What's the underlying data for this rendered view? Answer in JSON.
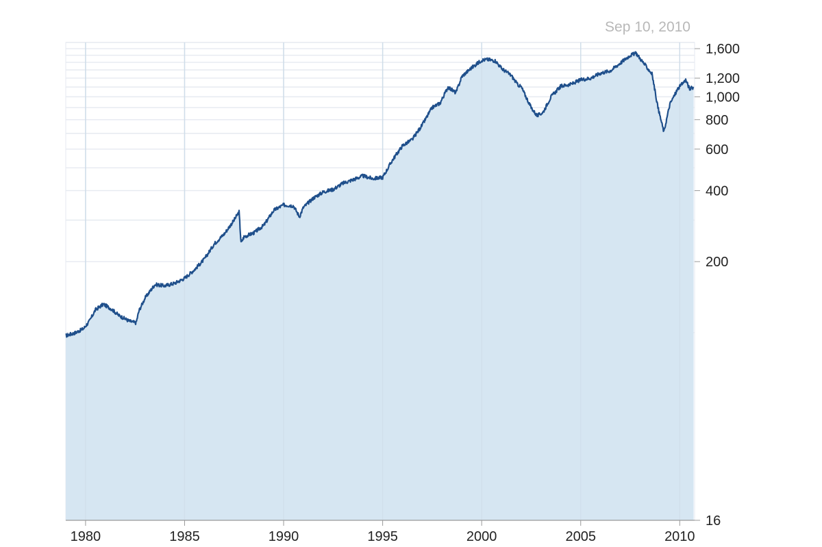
{
  "chart_data": {
    "type": "area",
    "date_label": "Sep 10, 2010",
    "title": "",
    "xlabel": "",
    "ylabel": "",
    "x_ticks": [
      "1980",
      "1985",
      "1990",
      "1995",
      "2000",
      "2005",
      "2010"
    ],
    "y_ticks": [
      "16",
      "200",
      "400",
      "600",
      "800",
      "1,000",
      "1,200",
      "1,600"
    ],
    "y_tick_values": [
      16,
      200,
      400,
      600,
      800,
      1000,
      1200,
      1600
    ],
    "y_grid_values": [
      100,
      200,
      300,
      400,
      500,
      600,
      700,
      800,
      900,
      1000,
      1100,
      1200,
      1300,
      1400,
      1500,
      1600,
      1700
    ],
    "y_scale": "log",
    "ylim": [
      16,
      1700
    ],
    "xlim": [
      "1979-01",
      "2010-09"
    ],
    "grid": true,
    "colors": {
      "line": "#1f4f8b",
      "fill": "#d6e6f2",
      "grid": "#e6eaf0",
      "year_grid": "#cfdde9"
    },
    "series": [
      {
        "x": [
          1979.0,
          1979.5,
          1979.9,
          1980.2,
          1980.5,
          1980.9,
          1981.3,
          1981.7,
          1982.2,
          1982.55,
          1982.7,
          1983.0,
          1983.5,
          1984.0,
          1984.5,
          1985.0,
          1985.5,
          1986.0,
          1986.5,
          1987.0,
          1987.5,
          1987.75,
          1987.85,
          1988.0,
          1988.5,
          1989.0,
          1989.5,
          1990.0,
          1990.5,
          1990.8,
          1991.0,
          1991.5,
          1992.0,
          1992.5,
          1993.0,
          1993.5,
          1994.0,
          1994.5,
          1995.0,
          1995.5,
          1996.0,
          1996.5,
          1997.0,
          1997.5,
          1997.9,
          1998.3,
          1998.7,
          1999.0,
          1999.5,
          2000.0,
          2000.3,
          2000.7,
          2001.0,
          2001.5,
          2001.8,
          2002.0,
          2002.5,
          2002.8,
          2003.1,
          2003.5,
          2004.0,
          2004.5,
          2005.0,
          2005.5,
          2006.0,
          2006.5,
          2007.0,
          2007.5,
          2007.8,
          2008.2,
          2008.6,
          2008.9,
          2009.2,
          2009.5,
          2009.9,
          2010.3,
          2010.5,
          2010.7
        ],
        "values": [
          97,
          100,
          104,
          112,
          125,
          132,
          126,
          118,
          112,
          110,
          124,
          140,
          160,
          158,
          162,
          170,
          185,
          205,
          238,
          262,
          300,
          325,
          240,
          255,
          265,
          285,
          330,
          348,
          345,
          310,
          340,
          372,
          395,
          405,
          430,
          445,
          462,
          450,
          455,
          540,
          620,
          660,
          760,
          900,
          940,
          1100,
          1040,
          1220,
          1330,
          1430,
          1440,
          1420,
          1320,
          1230,
          1130,
          1100,
          900,
          830,
          860,
          1000,
          1110,
          1130,
          1180,
          1200,
          1260,
          1290,
          1390,
          1500,
          1530,
          1380,
          1250,
          900,
          710,
          930,
          1080,
          1180,
          1080,
          1100
        ]
      }
    ]
  }
}
